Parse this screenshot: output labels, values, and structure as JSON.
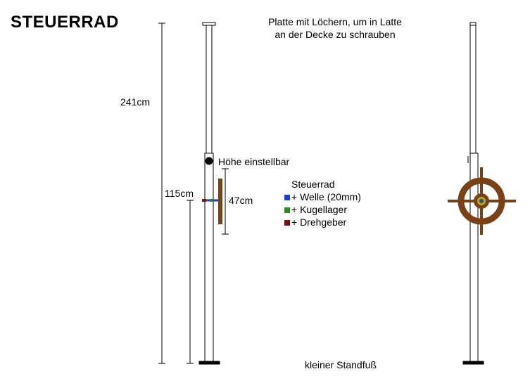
{
  "title": "STEUERRAD",
  "annotations": {
    "ceiling_plate_line1": "Platte mit Löchern, um in Latte",
    "ceiling_plate_line2": "an der Decke zu schrauben",
    "total_height": "241cm",
    "adjustable_height": "Höhe einstellbar",
    "wheel_center_height": "115cm",
    "wheel_diameter": "47cm",
    "small_stand": "kleiner Standfuß"
  },
  "legend": {
    "title": "Steuerrad",
    "items": [
      {
        "label": "+ Welle (20mm)",
        "color": "#1f3fd6"
      },
      {
        "label": "+ Kugellager",
        "color": "#2e8b22"
      },
      {
        "label": "+ Drehgeber",
        "color": "#7a1010"
      }
    ]
  },
  "colors": {
    "wheel": "#7a4116",
    "shaft": "#1f3fd6",
    "bearing": "#2e8b22",
    "encoder": "#7a1010",
    "hub_ring": "#c9a227"
  }
}
